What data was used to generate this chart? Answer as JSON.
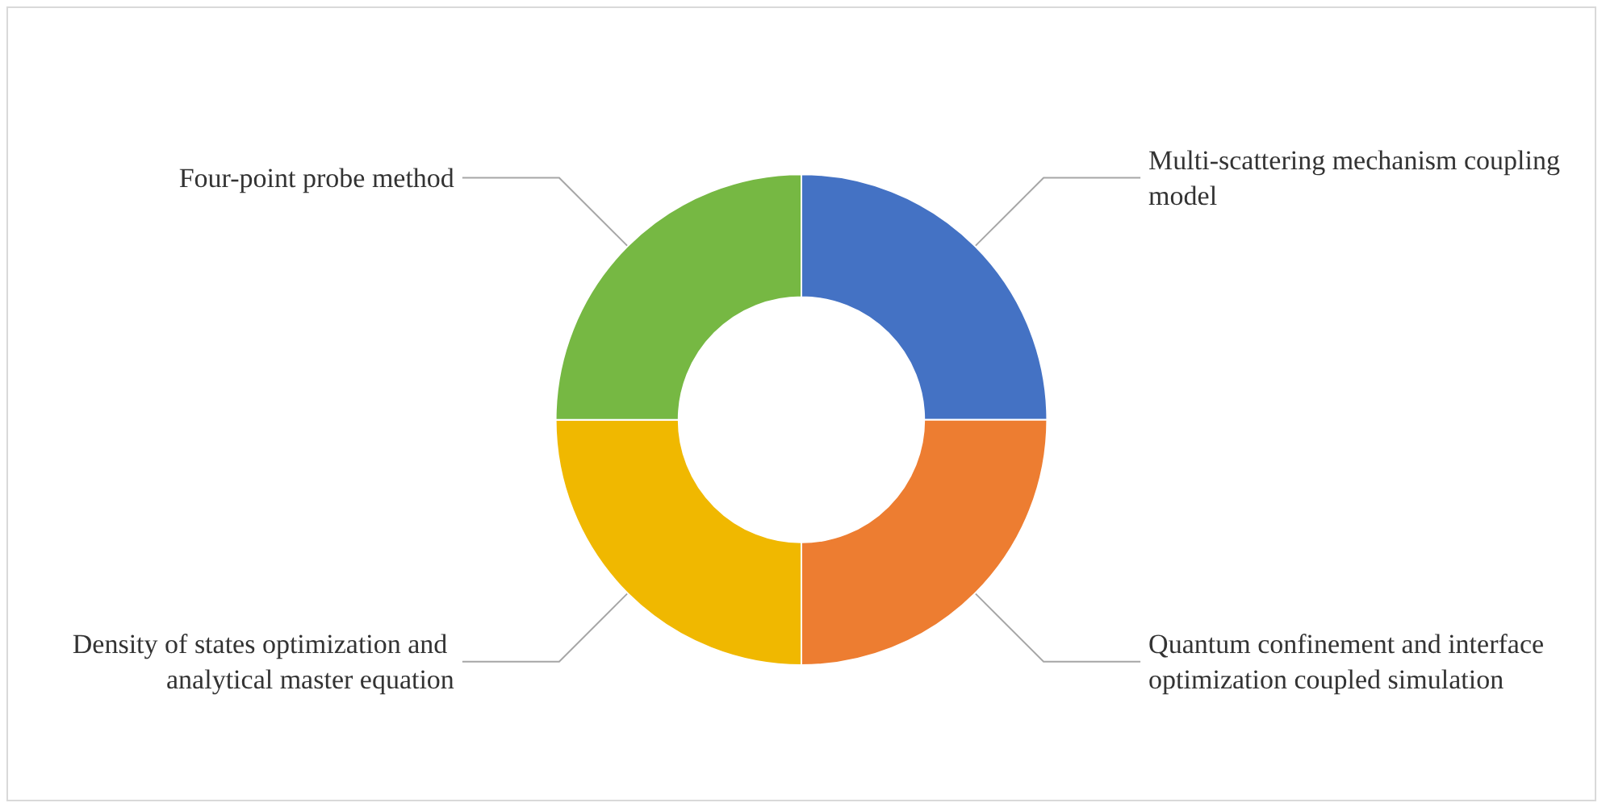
{
  "chart_data": {
    "type": "donut",
    "categories": [
      "Multi-scattering mechanism coupling model",
      "Quantum confinement and interface optimization coupled simulation",
      "Density of states optimization and analytical master equation",
      "Four-point probe method"
    ],
    "values": [
      25,
      25,
      25,
      25
    ],
    "colors": [
      "#4472c4",
      "#ed7d31",
      "#f0b800",
      "#76b843"
    ],
    "legend": false
  }
}
